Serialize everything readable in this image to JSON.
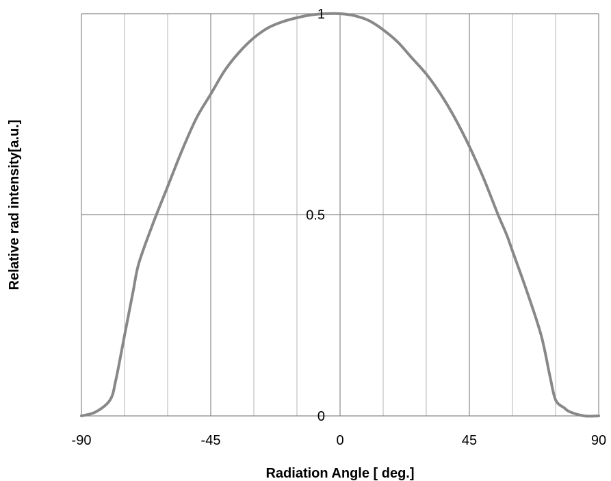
{
  "chart_data": {
    "type": "line",
    "title": "",
    "xlabel": "Radiation Angle [ deg.]",
    "ylabel": "Relative rad intensity[a.u.]",
    "xlim": [
      -90,
      90
    ],
    "ylim": [
      0,
      1
    ],
    "x_ticks": [
      -90,
      -45,
      0,
      45,
      90
    ],
    "x_tick_labels": [
      "-90",
      "-45",
      "0",
      "45",
      "90"
    ],
    "y_ticks": [
      0,
      0.5,
      1
    ],
    "y_tick_labels": [
      "0",
      "0.5",
      "1"
    ],
    "x_grid_minor": [
      -75,
      -60,
      -30,
      -15,
      15,
      30,
      60,
      75
    ],
    "grid": true,
    "legend": "none",
    "colors": {
      "line": "#888888",
      "grid_major": "#888888",
      "grid_minor": "#c0c0c0"
    },
    "series": [
      {
        "values": [
          [
            -90,
            0.0
          ],
          [
            -85,
            0.01
          ],
          [
            -80,
            0.04
          ],
          [
            -78,
            0.09
          ],
          [
            -75,
            0.2
          ],
          [
            -72,
            0.31
          ],
          [
            -70,
            0.38
          ],
          [
            -65,
            0.48
          ],
          [
            -60,
            0.57
          ],
          [
            -55,
            0.66
          ],
          [
            -50,
            0.74
          ],
          [
            -45,
            0.8
          ],
          [
            -40,
            0.86
          ],
          [
            -35,
            0.905
          ],
          [
            -30,
            0.94
          ],
          [
            -25,
            0.965
          ],
          [
            -20,
            0.98
          ],
          [
            -15,
            0.99
          ],
          [
            -10,
            0.997
          ],
          [
            -5,
            1.0
          ],
          [
            0,
            1.0
          ],
          [
            5,
            0.995
          ],
          [
            10,
            0.983
          ],
          [
            15,
            0.96
          ],
          [
            20,
            0.93
          ],
          [
            25,
            0.89
          ],
          [
            30,
            0.85
          ],
          [
            35,
            0.8
          ],
          [
            40,
            0.74
          ],
          [
            45,
            0.67
          ],
          [
            50,
            0.59
          ],
          [
            55,
            0.5
          ],
          [
            58,
            0.45
          ],
          [
            60,
            0.41
          ],
          [
            65,
            0.31
          ],
          [
            70,
            0.2
          ],
          [
            73,
            0.1
          ],
          [
            75,
            0.04
          ],
          [
            78,
            0.02
          ],
          [
            80,
            0.01
          ],
          [
            85,
            0.0
          ],
          [
            90,
            0.0
          ]
        ]
      }
    ]
  }
}
